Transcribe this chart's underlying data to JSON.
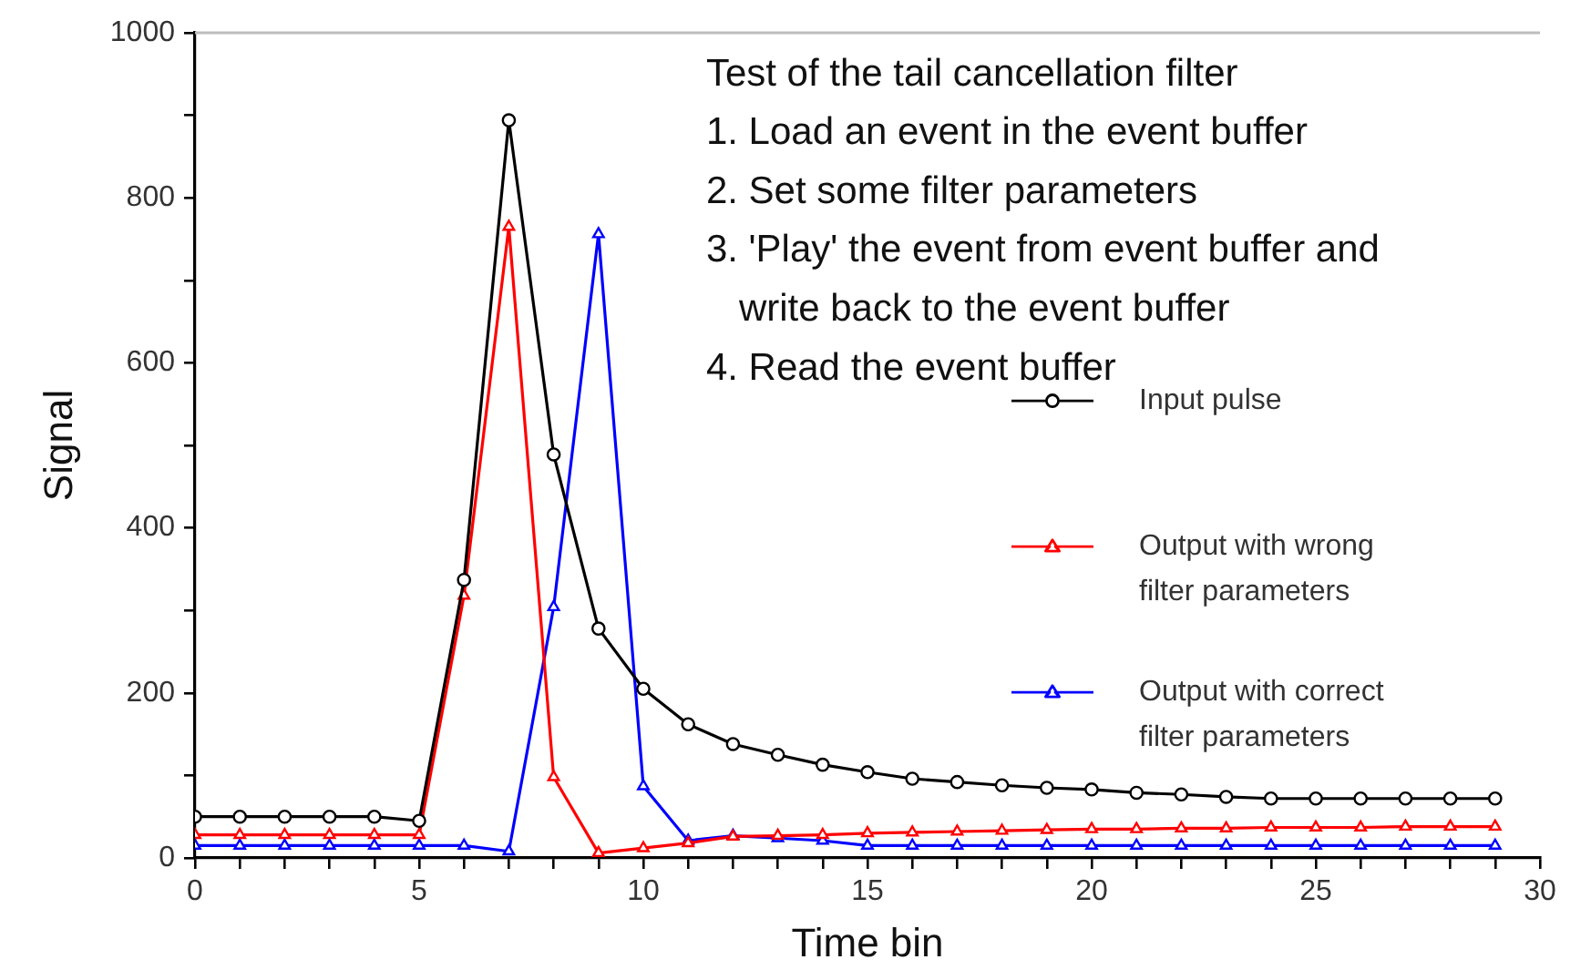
{
  "chart_data": {
    "type": "line",
    "xlabel": "Time bin",
    "ylabel": "Signal",
    "annotations": [
      "Test of the tail cancellation filter",
      "1. Load an event in the event buffer",
      "2. Set some filter parameters",
      "3. 'Play' the event from event buffer and write back to the event buffer",
      "4. Read the event buffer"
    ],
    "x": [
      0,
      1,
      2,
      3,
      4,
      5,
      6,
      7,
      8,
      9,
      10,
      11,
      12,
      13,
      14,
      15,
      16,
      17,
      18,
      19,
      20,
      21,
      22,
      23,
      24,
      25,
      26,
      27,
      28,
      29
    ],
    "series": [
      {
        "name": "Input pulse",
        "color": "#000000",
        "marker": "circle",
        "values": [
          50,
          50,
          50,
          50,
          50,
          45,
          337,
          894,
          489,
          278,
          205,
          162,
          138,
          125,
          113,
          104,
          96,
          92,
          88,
          85,
          83,
          79,
          77,
          74,
          72,
          72,
          72,
          72,
          72,
          72
        ]
      },
      {
        "name": "Output with wrong filter parameters",
        "color": "#ff0000",
        "marker": "triangle",
        "values": [
          28,
          28,
          28,
          28,
          28,
          28,
          318,
          765,
          98,
          6,
          12,
          18,
          26,
          27,
          28,
          30,
          31,
          32,
          33,
          34,
          35,
          35,
          36,
          36,
          37,
          37,
          37,
          38,
          38,
          38
        ]
      },
      {
        "name": "Output with correct filter parameters",
        "color": "#0000ff",
        "marker": "triangle",
        "values": [
          15,
          15,
          15,
          15,
          15,
          15,
          15,
          8,
          304,
          756,
          87,
          21,
          27,
          24,
          21,
          15,
          15,
          15,
          15,
          15,
          15,
          15,
          15,
          15,
          15,
          15,
          15,
          15,
          15,
          15
        ]
      }
    ],
    "xlim": [
      0,
      30
    ],
    "ylim": [
      0,
      1000
    ],
    "xticks": [
      0,
      {
        "value": 1,
        "label": null
      },
      {
        "value": 2,
        "label": null
      },
      {
        "value": 3,
        "label": null
      },
      {
        "value": 4,
        "label": null
      },
      5,
      {
        "value": 6,
        "label": null
      },
      {
        "value": 7,
        "label": null
      },
      {
        "value": 8,
        "label": null
      },
      {
        "value": 9,
        "label": null
      },
      10,
      {
        "value": 11,
        "label": null
      },
      {
        "value": 12,
        "label": null
      },
      {
        "value": 13,
        "label": null
      },
      {
        "value": 14,
        "label": null
      },
      15,
      {
        "value": 16,
        "label": null
      },
      {
        "value": 17,
        "label": null
      },
      {
        "value": 18,
        "label": null
      },
      {
        "value": 19,
        "label": null
      },
      20,
      {
        "value": 21,
        "label": null
      },
      {
        "value": 22,
        "label": null
      },
      {
        "value": 23,
        "label": null
      },
      {
        "value": 24,
        "label": null
      },
      25,
      {
        "value": 26,
        "label": null
      },
      {
        "value": 27,
        "label": null
      },
      {
        "value": 28,
        "label": null
      },
      {
        "value": 29,
        "label": null
      },
      30
    ],
    "yticks": [
      0,
      {
        "value": 100,
        "label": null
      },
      200,
      {
        "value": 300,
        "label": null
      },
      400,
      {
        "value": 500,
        "label": null
      },
      600,
      {
        "value": 700,
        "label": null
      },
      800,
      {
        "value": 900,
        "label": null
      },
      1000
    ],
    "legend": "right"
  }
}
